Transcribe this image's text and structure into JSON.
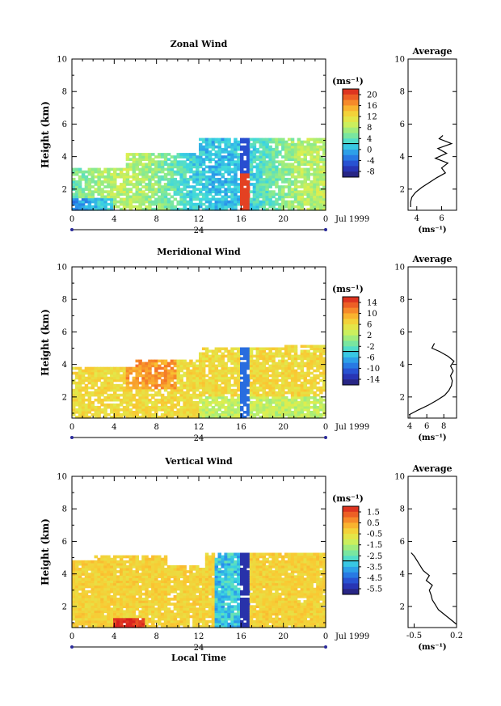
{
  "chart_data": [
    {
      "type": "heatmap",
      "title": "Zonal Wind",
      "ylabel": "Height (km)",
      "ylim": [
        0.7,
        10
      ],
      "yticks": [
        "2",
        "4",
        "6",
        "8",
        "10"
      ],
      "xticks": [
        "0",
        "4",
        "8",
        "12",
        "16",
        "20",
        "0"
      ],
      "xlim": [
        0,
        24
      ],
      "date_label": "24",
      "date_suffix": "Jul 1999",
      "colorbar": {
        "unit": "(ms⁻¹)",
        "ticks": [
          "20",
          "16",
          "12",
          "8",
          "4",
          "0",
          "-4",
          "-8"
        ],
        "range": [
          -10,
          22
        ]
      },
      "side_profile": {
        "title": "Average",
        "xticks": [
          "4",
          "6"
        ],
        "xlim": [
          3.3,
          7.2
        ],
        "xlabel": "(ms⁻¹)",
        "yticks": [
          "2",
          "4",
          "6",
          "8",
          "10"
        ],
        "height": [
          0.9,
          1.2,
          1.5,
          1.8,
          2.1,
          2.4,
          2.7,
          3.0,
          3.3,
          3.6,
          3.9,
          4.2,
          4.5,
          4.8,
          5.1,
          5.3
        ],
        "value": [
          3.5,
          3.5,
          3.6,
          3.9,
          4.4,
          5.0,
          5.6,
          6.3,
          6.0,
          6.5,
          5.5,
          6.4,
          5.7,
          6.8,
          5.8,
          6.1
        ]
      }
    },
    {
      "type": "heatmap",
      "title": "Meridional Wind",
      "ylabel": "Height (km)",
      "ylim": [
        0.7,
        10
      ],
      "yticks": [
        "2",
        "4",
        "6",
        "8",
        "10"
      ],
      "xticks": [
        "0",
        "4",
        "8",
        "12",
        "16",
        "20",
        "0"
      ],
      "xlim": [
        0,
        24
      ],
      "date_label": "24",
      "date_suffix": "Jul 1999",
      "colorbar": {
        "unit": "(ms⁻¹)",
        "ticks": [
          "14",
          "10",
          "6",
          "2",
          "-2",
          "-6",
          "-10",
          "-14"
        ],
        "range": [
          -16,
          16
        ]
      },
      "side_profile": {
        "title": "Average",
        "xticks": [
          "4",
          "6",
          "8"
        ],
        "xlim": [
          3.8,
          9.5
        ],
        "xlabel": "(ms⁻¹)",
        "yticks": [
          "2",
          "4",
          "6",
          "8",
          "10"
        ],
        "height": [
          0.9,
          1.2,
          1.5,
          1.8,
          2.1,
          2.4,
          2.7,
          3.0,
          3.3,
          3.6,
          3.9,
          4.2,
          4.5,
          4.8,
          5.0,
          5.3
        ],
        "value": [
          3.9,
          5.0,
          6.2,
          7.2,
          8.1,
          8.6,
          8.9,
          9.0,
          8.8,
          9.1,
          8.8,
          9.2,
          8.5,
          7.5,
          6.6,
          6.9
        ]
      }
    },
    {
      "type": "heatmap",
      "title": "Vertical Wind",
      "ylabel": "Height (km)",
      "xlabel": "Local Time",
      "ylim": [
        0.7,
        10
      ],
      "yticks": [
        "2",
        "4",
        "6",
        "8",
        "10"
      ],
      "xticks": [
        "0",
        "4",
        "8",
        "12",
        "16",
        "20",
        "0"
      ],
      "xlim": [
        0,
        24
      ],
      "date_label": "24",
      "date_suffix": "Jul 1999",
      "colorbar": {
        "unit": "(ms⁻¹)",
        "ticks": [
          "1.5",
          "0.5",
          "-0.5",
          "-1.5",
          "-2.5",
          "-3.5",
          "-4.5",
          "-5.5"
        ],
        "range": [
          -6.5,
          2.0
        ]
      },
      "side_profile": {
        "title": "Average",
        "xticks": [
          "-0.5",
          "0.2"
        ],
        "xlim": [
          -0.6,
          0.2
        ],
        "xlabel": "(ms⁻¹)",
        "yticks": [
          "2",
          "4",
          "6",
          "8",
          "10"
        ],
        "height": [
          0.9,
          1.2,
          1.5,
          1.8,
          2.1,
          2.4,
          2.7,
          3.0,
          3.3,
          3.6,
          3.9,
          4.2,
          4.5,
          4.8,
          5.1,
          5.3
        ],
        "value": [
          0.2,
          0.1,
          0.0,
          -0.1,
          -0.15,
          -0.2,
          -0.22,
          -0.25,
          -0.2,
          -0.3,
          -0.25,
          -0.35,
          -0.4,
          -0.45,
          -0.5,
          -0.55
        ]
      }
    }
  ]
}
